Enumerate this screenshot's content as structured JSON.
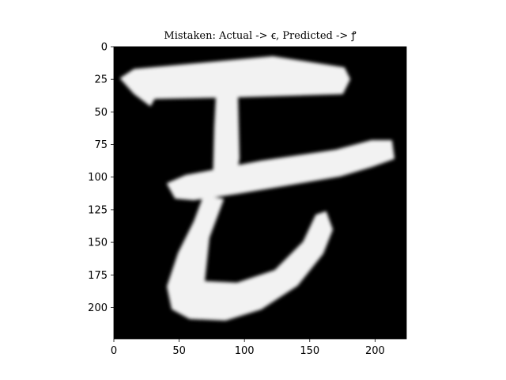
{
  "figure": {
    "title": "Mistaken: Actual -> ꞓ, Predicted -> ꝭ"
  },
  "image_panel": {
    "background_color": "#000000",
    "stroke_color": "#f2f2f2",
    "x_range": [
      0,
      224
    ],
    "y_range": [
      0,
      224
    ]
  },
  "axes": {
    "x_ticks": [
      0,
      50,
      100,
      150,
      200
    ],
    "y_ticks": [
      0,
      25,
      50,
      75,
      100,
      125,
      150,
      175,
      200
    ]
  }
}
